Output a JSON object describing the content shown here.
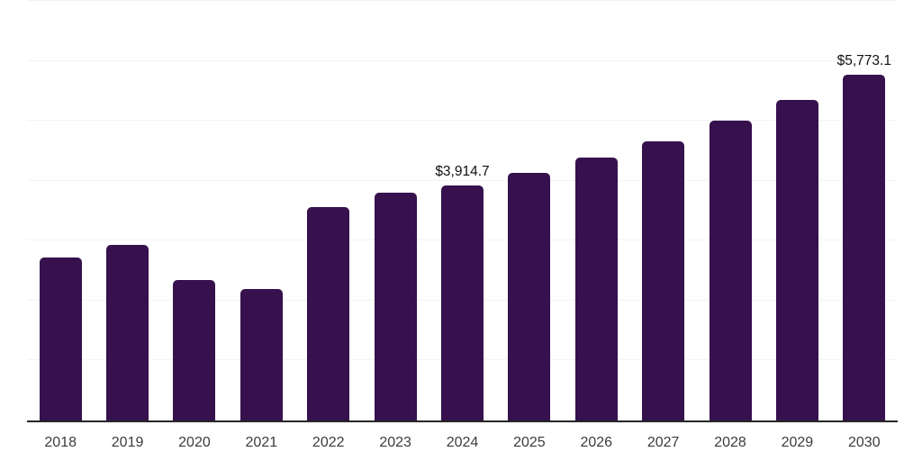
{
  "chart": {
    "bar_color": "#36114D",
    "grid_color": "#F3F3F3",
    "axis_color": "#262626",
    "tick_label_color": "#3C3C3C",
    "data_label_color": "#111111",
    "background_color": "#FFFFFF"
  },
  "chart_data": {
    "type": "bar",
    "categories": [
      "2018",
      "2019",
      "2020",
      "2021",
      "2022",
      "2023",
      "2024",
      "2025",
      "2026",
      "2027",
      "2028",
      "2029",
      "2030"
    ],
    "values": [
      2720,
      2930,
      2340,
      2200,
      3560,
      3800,
      3914.7,
      4130,
      4390,
      4660,
      5000,
      5350,
      5773.1
    ],
    "data_labels": [
      "",
      "",
      "",
      "",
      "",
      "",
      "$3,914.7",
      "",
      "",
      "",
      "",
      "",
      "$5,773.1"
    ],
    "title": "",
    "xlabel": "",
    "ylabel": "",
    "ylim": [
      0,
      7000
    ],
    "grid_step": 1000,
    "grid": true,
    "legend_position": "none"
  }
}
